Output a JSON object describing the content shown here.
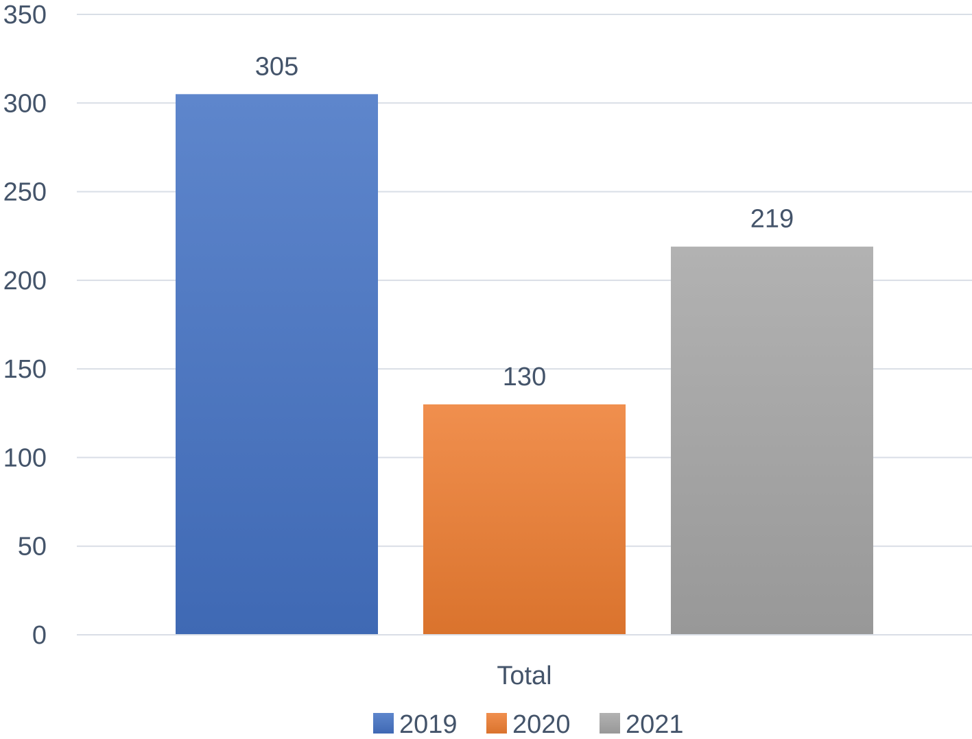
{
  "chart_data": {
    "type": "bar",
    "categories": [
      "Total"
    ],
    "series": [
      {
        "name": "2019",
        "values": [
          305
        ],
        "color": "#4472c4"
      },
      {
        "name": "2020",
        "values": [
          130
        ],
        "color": "#ed7d31"
      },
      {
        "name": "2021",
        "values": [
          219
        ],
        "color": "#a5a5a5"
      }
    ],
    "ylim": [
      0,
      350
    ],
    "yticks": [
      0,
      50,
      100,
      150,
      200,
      250,
      300,
      350
    ],
    "grid": true,
    "legend_position": "bottom",
    "data_labels": true
  }
}
